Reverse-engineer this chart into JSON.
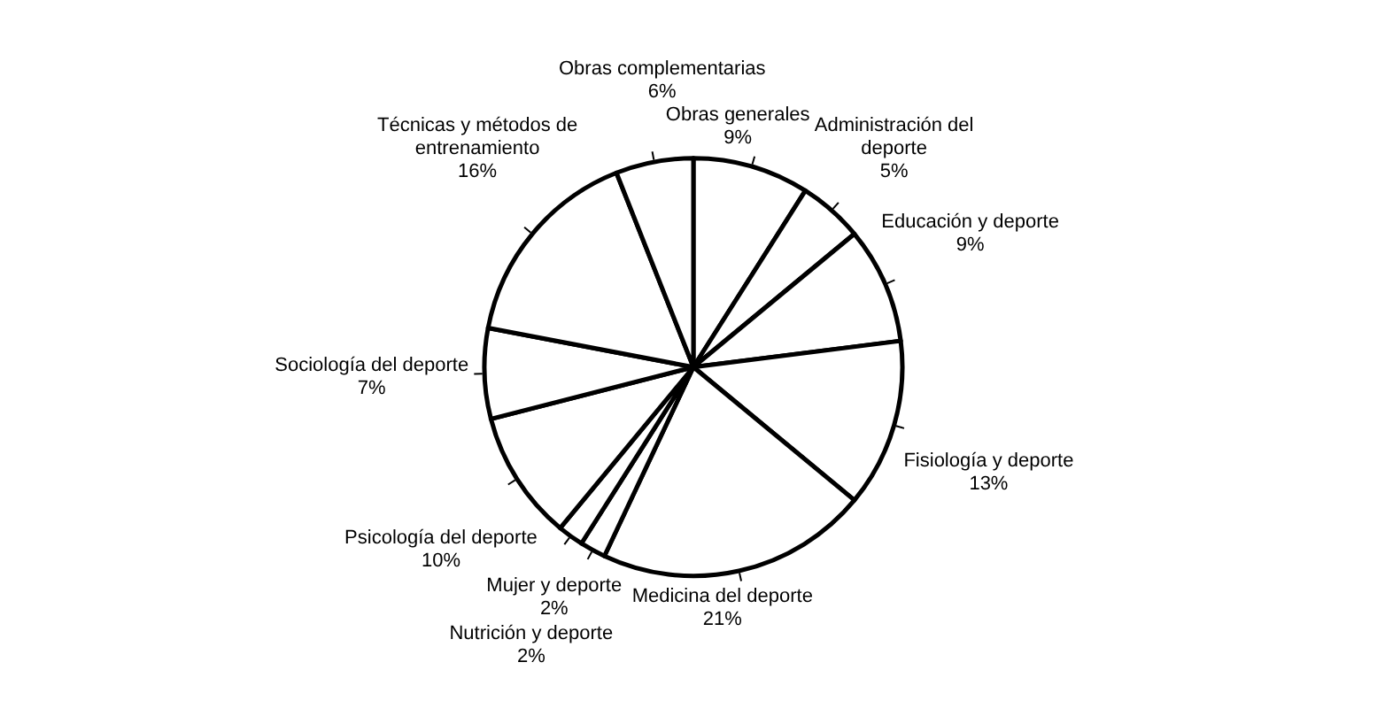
{
  "chart_data": {
    "type": "pie",
    "categories": [
      "Obras generales",
      "Administración del deporte",
      "Educación y deporte",
      "Fisiología y deporte",
      "Medicina del deporte",
      "Mujer y deporte",
      "Nutrición y deporte",
      "Psicología del deporte",
      "Sociología del deporte",
      "Técnicas y métodos de entrenamiento",
      "Obras complementarias"
    ],
    "values": [
      9,
      5,
      9,
      13,
      21,
      2,
      2,
      10,
      7,
      16,
      6
    ],
    "value_labels": [
      "9%",
      "5%",
      "9%",
      "13%",
      "21%",
      "2%",
      "2%",
      "10%",
      "7%",
      "16%",
      "6%"
    ],
    "colors": [
      "#ffffff",
      "#ffffff",
      "#ffffff",
      "#ffffff",
      "#ffffff",
      "#ffffff",
      "#ffffff",
      "#ffffff",
      "#ffffff",
      "#ffffff",
      "#ffffff"
    ]
  }
}
